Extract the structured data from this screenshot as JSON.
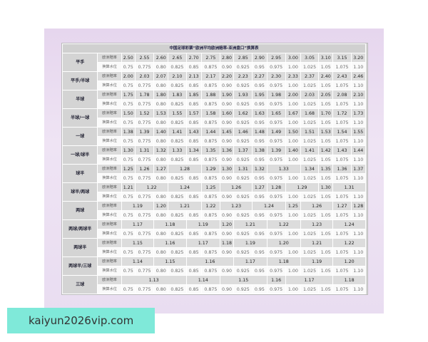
{
  "title": "中国足球彩票“欧洲平均欧洲赔率-亚洲盘口”换算表",
  "odds_label": "欧洲赔率",
  "water_label": "换算水位",
  "water_values": [
    "0.75",
    "0.775",
    "0.80",
    "0.825",
    "0.85",
    "0.875",
    "0.90",
    "0.925",
    "0.95",
    "0.975",
    "1.00",
    "1.025",
    "1.05",
    "1.075",
    "1.10"
  ],
  "groups": [
    {
      "handicap": "平手",
      "odds": [
        [
          "2.50",
          1
        ],
        [
          "2.55",
          1
        ],
        [
          "2.60",
          1
        ],
        [
          "2.65",
          1
        ],
        [
          "2.70",
          1
        ],
        [
          "2.75",
          1
        ],
        [
          "2.80",
          1
        ],
        [
          "2.85",
          1
        ],
        [
          "2.90",
          1
        ],
        [
          "2.95",
          1
        ],
        [
          "3.00",
          1
        ],
        [
          "3.05",
          1
        ],
        [
          "3.10",
          1
        ],
        [
          "3.15",
          1
        ],
        [
          "3.20",
          1
        ]
      ]
    },
    {
      "handicap": "平手/半球",
      "odds": [
        [
          "2.00",
          1
        ],
        [
          "2.03",
          1
        ],
        [
          "2.07",
          1
        ],
        [
          "2.10",
          1
        ],
        [
          "2.13",
          1
        ],
        [
          "2.17",
          1
        ],
        [
          "2.20",
          1
        ],
        [
          "2.23",
          1
        ],
        [
          "2.27",
          1
        ],
        [
          "2.30",
          1
        ],
        [
          "2.33",
          1
        ],
        [
          "2.37",
          1
        ],
        [
          "2.40",
          1
        ],
        [
          "2.43",
          1
        ],
        [
          "2.46",
          1
        ]
      ]
    },
    {
      "handicap": "半球",
      "odds": [
        [
          "1.75",
          1
        ],
        [
          "1.78",
          1
        ],
        [
          "1.80",
          1
        ],
        [
          "1.83",
          1
        ],
        [
          "1.85",
          1
        ],
        [
          "1.88",
          1
        ],
        [
          "1.90",
          1
        ],
        [
          "1.93",
          1
        ],
        [
          "1.95",
          1
        ],
        [
          "1.98",
          1
        ],
        [
          "2.00",
          1
        ],
        [
          "2.03",
          1
        ],
        [
          "2.05",
          1
        ],
        [
          "2.08",
          1
        ],
        [
          "2.10",
          1
        ]
      ]
    },
    {
      "handicap": "半球/一球",
      "odds": [
        [
          "1.50",
          1
        ],
        [
          "1.52",
          1
        ],
        [
          "1.53",
          1
        ],
        [
          "1.55",
          1
        ],
        [
          "1.57",
          1
        ],
        [
          "1.58",
          1
        ],
        [
          "1.60",
          1
        ],
        [
          "1.62",
          1
        ],
        [
          "1.63",
          1
        ],
        [
          "1.65",
          1
        ],
        [
          "1.67",
          1
        ],
        [
          "1.68",
          1
        ],
        [
          "1.70",
          1
        ],
        [
          "1.72",
          1
        ],
        [
          "1.73",
          1
        ]
      ]
    },
    {
      "handicap": "一球",
      "odds": [
        [
          "1.38",
          1
        ],
        [
          "1.39",
          1
        ],
        [
          "1.40",
          1
        ],
        [
          "1.41",
          1
        ],
        [
          "1.43",
          1
        ],
        [
          "1.44",
          1
        ],
        [
          "1.45",
          1
        ],
        [
          "1.46",
          1
        ],
        [
          "1.48",
          1
        ],
        [
          "1.49",
          1
        ],
        [
          "1.50",
          1
        ],
        [
          "1.51",
          1
        ],
        [
          "1.53",
          1
        ],
        [
          "1.54",
          1
        ],
        [
          "1.55",
          1
        ]
      ]
    },
    {
      "handicap": "一球/球半",
      "odds": [
        [
          "1.30",
          1
        ],
        [
          "1.31",
          1
        ],
        [
          "1.32",
          1
        ],
        [
          "1.33",
          1
        ],
        [
          "1.34",
          1
        ],
        [
          "1.35",
          1
        ],
        [
          "1.36",
          1
        ],
        [
          "1.37",
          1
        ],
        [
          "1.38",
          1
        ],
        [
          "1.39",
          1
        ],
        [
          "1.40",
          1
        ],
        [
          "1.41",
          1
        ],
        [
          "1.42",
          1
        ],
        [
          "1.43",
          1
        ],
        [
          "1.44",
          1
        ]
      ]
    },
    {
      "handicap": "球半",
      "odds": [
        [
          "1.25",
          1
        ],
        [
          "1.26",
          1
        ],
        [
          "1.27",
          1
        ],
        [
          "1.28",
          2
        ],
        [
          "1.29",
          1
        ],
        [
          "1.30",
          1
        ],
        [
          "1.31",
          1
        ],
        [
          "1.32",
          1
        ],
        [
          "1.33",
          2
        ],
        [
          "1.34",
          1
        ],
        [
          "1.35",
          1
        ],
        [
          "1.36",
          1
        ],
        [
          "1.37",
          1
        ]
      ]
    },
    {
      "handicap": "球半/两球",
      "odds": [
        [
          "1.21",
          1
        ],
        [
          "1.22",
          2
        ],
        [
          "1.24",
          2
        ],
        [
          "1.25",
          1
        ],
        [
          "1.26",
          2
        ],
        [
          "1.27",
          1
        ],
        [
          "1.28",
          1
        ],
        [
          "1.29",
          2
        ],
        [
          "1.30",
          1
        ],
        [
          "1.31",
          2
        ]
      ]
    },
    {
      "handicap": "两球",
      "odds": [
        [
          "1.19",
          2
        ],
        [
          "1.20",
          1
        ],
        [
          "1.21",
          2
        ],
        [
          "1.22",
          1
        ],
        [
          "1.23",
          2
        ],
        [
          "1.24",
          2
        ],
        [
          "1.25",
          1
        ],
        [
          "1.26",
          2
        ],
        [
          "1.27",
          1
        ],
        [
          "1.28",
          1
        ]
      ]
    },
    {
      "handicap": "两球/两球半",
      "odds": [
        [
          "1.17",
          2
        ],
        [
          "1.18",
          2
        ],
        [
          "1.19",
          2
        ],
        [
          "1.20",
          1
        ],
        [
          "1.21",
          2
        ],
        [
          "1.22",
          2
        ],
        [
          "1.23",
          2
        ],
        [
          "1.24",
          2
        ]
      ]
    },
    {
      "handicap": "两球半",
      "odds": [
        [
          "1.15",
          2
        ],
        [
          "1.16",
          2
        ],
        [
          "1.17",
          2
        ],
        [
          "1.18",
          1
        ],
        [
          "1.19",
          2
        ],
        [
          "1.20",
          2
        ],
        [
          "1.21",
          2
        ],
        [
          "1.22",
          2
        ]
      ]
    },
    {
      "handicap": "两球半/三球",
      "odds": [
        [
          "1.14",
          2
        ],
        [
          "1.15",
          2
        ],
        [
          "1.16",
          3
        ],
        [
          "1.17",
          2
        ],
        [
          "1.18",
          2
        ],
        [
          "1.19",
          2
        ],
        [
          "1.20",
          2
        ]
      ]
    },
    {
      "handicap": "三球",
      "odds": [
        [
          "1.13",
          4
        ],
        [
          "1.14",
          2
        ],
        [
          "1.15",
          3
        ],
        [
          "1.16",
          1
        ],
        [
          "1.17",
          3
        ],
        [
          "1.18",
          2
        ]
      ]
    }
  ],
  "watermark": "kaiyun2026vip.com"
}
